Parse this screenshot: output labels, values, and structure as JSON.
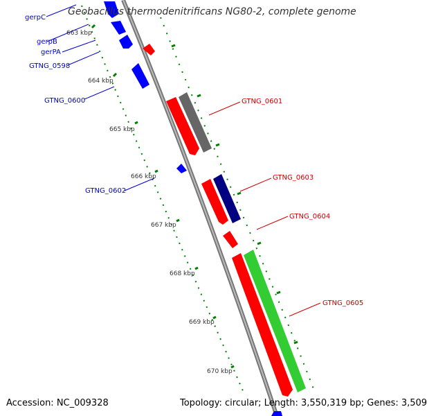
{
  "title": "Geobacillus thermodenitrificans NG80-2, complete genome",
  "accession": "Accession: NC_009328",
  "summary": "Topology: circular; Length: 3,550,319 bp; Genes: 3,509",
  "colors": {
    "forward_gene": "#ff0000",
    "reverse_gene": "#0000ff",
    "gray_feature": "#666666",
    "navy_feature": "#000080",
    "green_feature": "#33cc33",
    "backbone": "#888888",
    "tick": "#008000"
  },
  "kbp_ticks": [
    "663 kbp",
    "664 kbp",
    "665 kbp",
    "666 kbp",
    "667 kbp",
    "668 kbp",
    "669 kbp",
    "670 kbp"
  ],
  "left_labels": [
    "gerpC",
    "gerpB",
    "gerPA",
    "GTNG_0598",
    "GTNG_0600",
    "GTNG_0602"
  ],
  "right_labels": [
    "GTNG_0601",
    "GTNG_0603",
    "GTNG_0604",
    "GTNG_0605"
  ]
}
